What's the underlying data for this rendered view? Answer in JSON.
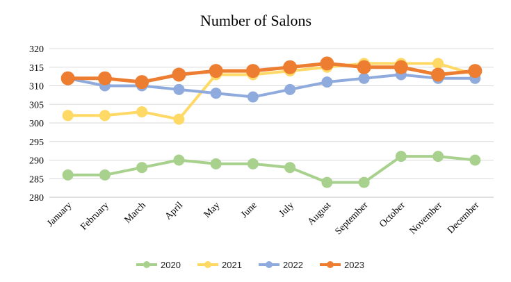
{
  "chart_data": {
    "type": "line",
    "title": "Number of Salons",
    "xlabel": "",
    "ylabel": "",
    "categories": [
      "January",
      "February",
      "March",
      "April",
      "May",
      "June",
      "July",
      "August",
      "September",
      "October",
      "November",
      "December"
    ],
    "ylim": [
      280,
      320
    ],
    "yticks": [
      280,
      285,
      290,
      295,
      300,
      305,
      310,
      315,
      320
    ],
    "grid": true,
    "legend_position": "bottom",
    "series": [
      {
        "name": "2020",
        "color": "#a9d18e",
        "values": [
          286,
          286,
          288,
          290,
          289,
          289,
          288,
          284,
          284,
          291,
          291,
          290
        ]
      },
      {
        "name": "2021",
        "color": "#ffd966",
        "values": [
          302,
          302,
          303,
          301,
          313,
          313,
          314,
          315,
          316,
          316,
          316,
          313
        ]
      },
      {
        "name": "2022",
        "color": "#8faadc",
        "values": [
          312,
          310,
          310,
          309,
          308,
          307,
          309,
          311,
          312,
          313,
          312,
          312
        ]
      },
      {
        "name": "2023",
        "color": "#ed7d31",
        "values": [
          312,
          312,
          311,
          313,
          314,
          314,
          315,
          316,
          315,
          315,
          313,
          314
        ]
      }
    ]
  }
}
